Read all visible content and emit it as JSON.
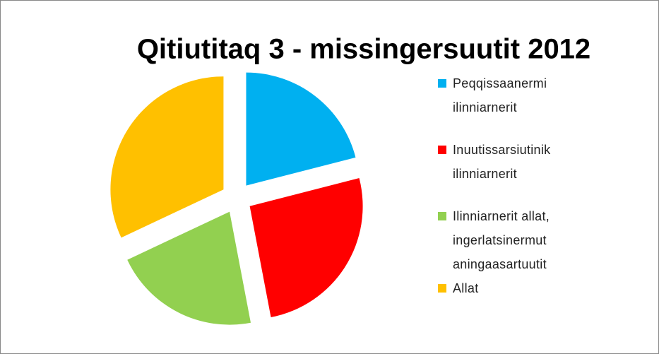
{
  "chart_data": {
    "type": "pie",
    "title": "Qitiutitaq 3 - missingersuutit 2012",
    "categories": [
      "Peqqissaanermi ilinniarnerit",
      "Inuutissarsiutinik ilinniarnerit",
      "Ilinniarnerit allat, ingerlatsinermut aningaasartuutit",
      "Allat"
    ],
    "values": [
      21,
      26,
      21,
      32
    ],
    "colors": [
      "#00b0f0",
      "#ff0000",
      "#92d050",
      "#ffc000"
    ],
    "exploded": true
  }
}
